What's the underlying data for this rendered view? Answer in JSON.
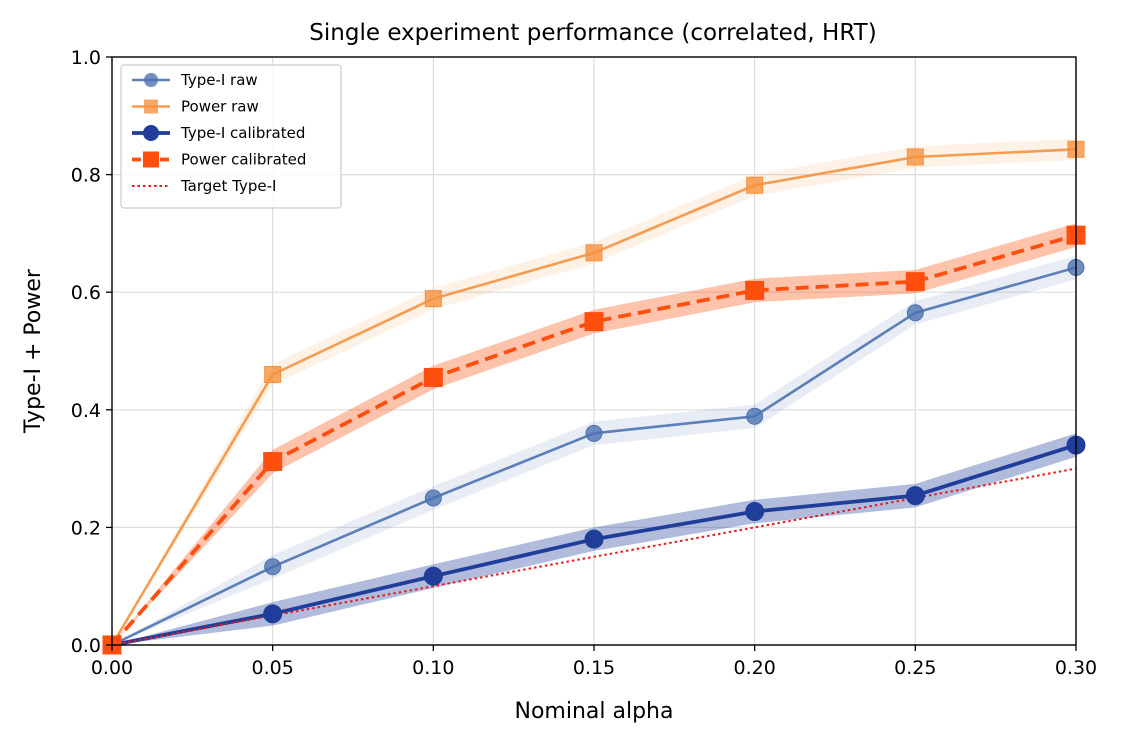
{
  "chart_data": {
    "type": "line",
    "title": "Single experiment performance (correlated, HRT)",
    "xlabel": "Nominal alpha",
    "ylabel": "Type-I + Power",
    "xlim": [
      0.0,
      0.3
    ],
    "ylim": [
      0.0,
      1.0
    ],
    "xticks": [
      "0.00",
      "0.05",
      "0.10",
      "0.15",
      "0.20",
      "0.25",
      "0.30"
    ],
    "yticks": [
      "0.0",
      "0.2",
      "0.4",
      "0.6",
      "0.8",
      "1.0"
    ],
    "grid": true,
    "legend_position": "upper-left",
    "x": [
      0.0,
      0.05,
      0.1,
      0.15,
      0.2,
      0.25,
      0.3
    ],
    "series": [
      {
        "name": "Type-I raw",
        "values": [
          0.0,
          0.133,
          0.25,
          0.36,
          0.389,
          0.565,
          0.642
        ],
        "band": 0.02,
        "color": "#4c72b0",
        "marker": "circle",
        "style": "solid",
        "emphasis": "raw"
      },
      {
        "name": "Power raw",
        "values": [
          0.0,
          0.46,
          0.589,
          0.667,
          0.782,
          0.83,
          0.843
        ],
        "band": 0.018,
        "color": "#f5923e",
        "marker": "square",
        "style": "solid",
        "emphasis": "raw"
      },
      {
        "name": "Type-I calibrated",
        "values": [
          0.0,
          0.053,
          0.117,
          0.18,
          0.227,
          0.254,
          0.34
        ],
        "band": 0.02,
        "color": "#1f3d99",
        "marker": "circle",
        "style": "solid",
        "emphasis": "calibrated"
      },
      {
        "name": "Power calibrated",
        "values": [
          0.0,
          0.312,
          0.455,
          0.55,
          0.603,
          0.618,
          0.697
        ],
        "band": 0.02,
        "color": "#ff4f0f",
        "marker": "square",
        "style": "dashed",
        "emphasis": "calibrated"
      },
      {
        "name": "Target Type-I",
        "values": [
          0.0,
          0.05,
          0.1,
          0.15,
          0.2,
          0.25,
          0.3
        ],
        "color": "#e31a1c",
        "marker": "none",
        "style": "dotted",
        "emphasis": "target"
      }
    ]
  }
}
